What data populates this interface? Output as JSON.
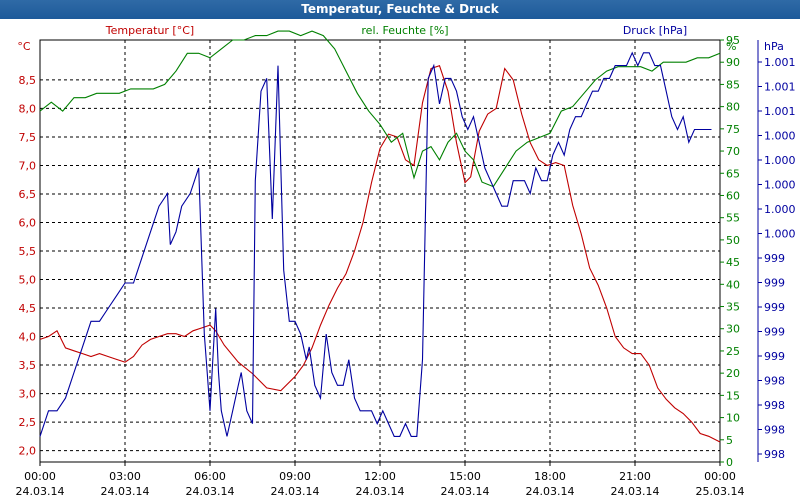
{
  "window_title": "Temperatur, Feuchte & Druck",
  "chart_data": {
    "type": "line",
    "title": "Temperatur, Feuchte & Druck",
    "x_ticks": [
      {
        "time": "00:00",
        "date": "24.03.14"
      },
      {
        "time": "03:00",
        "date": "24.03.14"
      },
      {
        "time": "06:00",
        "date": "24.03.14"
      },
      {
        "time": "09:00",
        "date": "24.03.14"
      },
      {
        "time": "12:00",
        "date": "24.03.14"
      },
      {
        "time": "15:00",
        "date": "24.03.14"
      },
      {
        "time": "18:00",
        "date": "24.03.14"
      },
      {
        "time": "21:00",
        "date": "24.03.14"
      },
      {
        "time": "00:00",
        "date": "25.03.14"
      }
    ],
    "xlim_hours": [
      0,
      24
    ],
    "grid": true,
    "axes": {
      "temperature": {
        "unit": "°C",
        "label": "Temperatur [°C]",
        "ylim": [
          1.8,
          9.2
        ],
        "ticks": [
          "2,0",
          "2,5",
          "3,0",
          "3,5",
          "4,0",
          "4,5",
          "5,0",
          "5,5",
          "6,0",
          "6,5",
          "7,0",
          "7,5",
          "8,0",
          "8,5"
        ],
        "color": "#c00000"
      },
      "humidity": {
        "unit": "%",
        "label": "rel. Feuchte [%]",
        "ylim": [
          0,
          95
        ],
        "ticks": [
          "0",
          "5",
          "10",
          "15",
          "20",
          "25",
          "30",
          "35",
          "40",
          "45",
          "50",
          "55",
          "60",
          "65",
          "70",
          "75",
          "80",
          "85",
          "90",
          "95"
        ],
        "color": "#008000"
      },
      "pressure": {
        "unit": "hPa",
        "label": "Druck [hPa]",
        "ylim": [
          997.9,
          1001.2
        ],
        "ticks": [
          "998",
          "998",
          "998",
          "998",
          "999",
          "999",
          "999",
          "999",
          "999",
          "1.000",
          "1.000",
          "1.000",
          "1.000",
          "1.000",
          "1.001",
          "1.001",
          "1.001"
        ],
        "color": "#0000a0"
      }
    },
    "series": [
      {
        "name": "Temperatur [°C]",
        "axis": "temperature",
        "color": "#c00000",
        "x": [
          0,
          0.3,
          0.6,
          0.9,
          1.2,
          1.5,
          1.8,
          2.1,
          2.4,
          2.7,
          3.0,
          3.3,
          3.6,
          3.9,
          4.2,
          4.5,
          4.8,
          5.1,
          5.4,
          5.7,
          6.0,
          6.2,
          6.5,
          7.0,
          7.5,
          8.0,
          8.5,
          9.0,
          9.3,
          9.6,
          9.9,
          10.2,
          10.5,
          10.8,
          11.1,
          11.4,
          11.7,
          12.0,
          12.3,
          12.6,
          12.9,
          13.2,
          13.5,
          13.8,
          14.1,
          14.4,
          14.7,
          15.0,
          15.2,
          15.5,
          15.8,
          16.1,
          16.4,
          16.7,
          17.0,
          17.3,
          17.6,
          17.9,
          18.2,
          18.5,
          18.8,
          19.1,
          19.4,
          19.7,
          20.0,
          20.3,
          20.6,
          20.9,
          21.2,
          21.5,
          21.8,
          22.1,
          22.4,
          22.7,
          23.0,
          23.3,
          23.6,
          24.0
        ],
        "y": [
          3.95,
          4.0,
          4.1,
          3.8,
          3.75,
          3.7,
          3.65,
          3.7,
          3.65,
          3.6,
          3.55,
          3.65,
          3.85,
          3.95,
          4.0,
          4.05,
          4.05,
          4.0,
          4.1,
          4.15,
          4.2,
          4.1,
          3.85,
          3.55,
          3.35,
          3.1,
          3.05,
          3.3,
          3.5,
          3.8,
          4.2,
          4.55,
          4.85,
          5.1,
          5.5,
          6.0,
          6.7,
          7.3,
          7.55,
          7.5,
          7.1,
          7.0,
          8.1,
          8.7,
          8.75,
          8.3,
          7.4,
          6.7,
          6.8,
          7.6,
          7.9,
          8.0,
          8.7,
          8.5,
          7.9,
          7.4,
          7.1,
          7.0,
          7.05,
          7.0,
          6.3,
          5.8,
          5.2,
          4.9,
          4.5,
          4.0,
          3.8,
          3.7,
          3.7,
          3.5,
          3.1,
          2.9,
          2.75,
          2.65,
          2.5,
          2.3,
          2.25,
          2.15
        ]
      },
      {
        "name": "rel. Feuchte [%]",
        "axis": "humidity",
        "color": "#008000",
        "x": [
          0,
          0.4,
          0.8,
          1.2,
          1.6,
          2.0,
          2.4,
          2.8,
          3.2,
          3.6,
          4.0,
          4.4,
          4.8,
          5.2,
          5.6,
          6.0,
          6.4,
          6.8,
          7.2,
          7.6,
          8.0,
          8.4,
          8.8,
          9.2,
          9.6,
          10.0,
          10.4,
          10.8,
          11.2,
          11.6,
          12.0,
          12.4,
          12.8,
          13.2,
          13.5,
          13.8,
          14.1,
          14.4,
          14.7,
          15.0,
          15.3,
          15.6,
          16.0,
          16.4,
          16.8,
          17.2,
          17.6,
          18.0,
          18.4,
          18.8,
          19.2,
          19.6,
          20.0,
          20.4,
          20.8,
          21.2,
          21.6,
          22.0,
          22.4,
          22.8,
          23.2,
          23.6,
          24.0
        ],
        "y": [
          79,
          81,
          79,
          82,
          82,
          83,
          83,
          83,
          84,
          84,
          84,
          85,
          88,
          92,
          92,
          91,
          93,
          95,
          95,
          96,
          96,
          97,
          97,
          96,
          97,
          96,
          93,
          88,
          83,
          79,
          76,
          72,
          74,
          64,
          70,
          71,
          68,
          72,
          74,
          70,
          68,
          63,
          62,
          66,
          70,
          72,
          73,
          74,
          79,
          80,
          83,
          86,
          88,
          89,
          89,
          89,
          88,
          90,
          90,
          90,
          91,
          91,
          92
        ]
      },
      {
        "name": "Druck [hPa]",
        "axis": "pressure",
        "color": "#0000a0",
        "x": [
          0,
          0.3,
          0.6,
          0.9,
          1.2,
          1.5,
          1.8,
          2.1,
          2.4,
          2.7,
          3.0,
          3.3,
          3.6,
          3.9,
          4.2,
          4.5,
          4.6,
          4.8,
          5.0,
          5.3,
          5.6,
          5.8,
          5.9,
          6.0,
          6.1,
          6.2,
          6.3,
          6.4,
          6.6,
          6.8,
          7.0,
          7.1,
          7.3,
          7.5,
          7.6,
          7.8,
          8.0,
          8.2,
          8.4,
          8.6,
          8.8,
          9.0,
          9.2,
          9.4,
          9.5,
          9.7,
          9.9,
          10.1,
          10.3,
          10.5,
          10.7,
          10.9,
          11.1,
          11.3,
          11.5,
          11.7,
          11.9,
          12.1,
          12.3,
          12.5,
          12.7,
          12.9,
          13.1,
          13.3,
          13.5,
          13.7,
          13.9,
          14.1,
          14.3,
          14.5,
          14.7,
          14.9,
          15.1,
          15.3,
          15.5,
          15.7,
          15.9,
          16.1,
          16.3,
          16.5,
          16.7,
          16.9,
          17.1,
          17.3,
          17.5,
          17.7,
          17.9,
          18.1,
          18.3,
          18.5,
          18.7,
          18.9,
          19.1,
          19.3,
          19.5,
          19.7,
          19.9,
          20.1,
          20.3,
          20.5,
          20.7,
          20.9,
          21.1,
          21.3,
          21.5,
          21.7,
          21.9,
          22.1,
          22.3,
          22.5,
          22.7,
          22.9,
          23.1,
          23.3,
          23.5,
          23.7
        ],
        "y": [
          998.1,
          998.3,
          998.3,
          998.4,
          998.6,
          998.8,
          999.0,
          999.0,
          999.1,
          999.2,
          999.3,
          999.3,
          999.5,
          999.7,
          999.9,
          1000.0,
          999.6,
          999.7,
          999.9,
          1000.0,
          1000.2,
          998.9,
          998.6,
          998.3,
          998.7,
          999.1,
          998.6,
          998.3,
          998.1,
          998.3,
          998.5,
          998.6,
          998.3,
          998.2,
          1000.1,
          1000.8,
          1000.9,
          999.8,
          1001.0,
          999.4,
          999.0,
          999.0,
          998.9,
          998.7,
          998.8,
          998.5,
          998.4,
          998.9,
          998.6,
          998.5,
          998.5,
          998.7,
          998.4,
          998.3,
          998.3,
          998.3,
          998.2,
          998.3,
          998.2,
          998.1,
          998.1,
          998.2,
          998.1,
          998.1,
          998.7,
          1000.9,
          1001.0,
          1000.7,
          1000.9,
          1000.9,
          1000.8,
          1000.6,
          1000.5,
          1000.6,
          1000.4,
          1000.2,
          1000.1,
          1000.0,
          999.9,
          999.9,
          1000.1,
          1000.1,
          1000.1,
          1000.0,
          1000.2,
          1000.1,
          1000.1,
          1000.3,
          1000.4,
          1000.3,
          1000.5,
          1000.6,
          1000.6,
          1000.7,
          1000.8,
          1000.8,
          1000.9,
          1000.9,
          1001.0,
          1001.0,
          1001.0,
          1001.1,
          1001.0,
          1001.1,
          1001.1,
          1001.0,
          1001.0,
          1000.8,
          1000.6,
          1000.5,
          1000.6,
          1000.4,
          1000.5,
          1000.5,
          1000.5,
          1000.5
        ]
      }
    ]
  }
}
